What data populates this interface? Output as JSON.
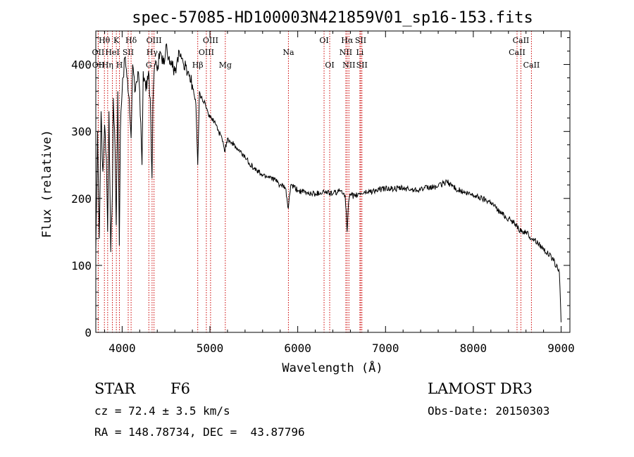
{
  "chart_data": {
    "type": "line",
    "title": "spec-57085-HD100003N421859V01_sp16-153.fits",
    "xlabel": "Wavelength (Å)",
    "ylabel": "Flux (relative)",
    "xlim": [
      3700,
      9100
    ],
    "ylim": [
      0,
      450
    ],
    "xticks": [
      4000,
      5000,
      6000,
      7000,
      8000,
      9000
    ],
    "yticks": [
      0,
      100,
      200,
      300,
      400
    ],
    "grid": false,
    "series": [
      {
        "name": "spectrum",
        "x": [
          3700,
          3720,
          3740,
          3760,
          3780,
          3800,
          3820,
          3835,
          3850,
          3870,
          3889,
          3900,
          3920,
          3933,
          3950,
          3968,
          3980,
          4000,
          4030,
          4060,
          4080,
          4102,
          4120,
          4150,
          4180,
          4200,
          4226,
          4240,
          4270,
          4300,
          4320,
          4340,
          4350,
          4370,
          4400,
          4430,
          4450,
          4480,
          4500,
          4530,
          4560,
          4600,
          4650,
          4700,
          4750,
          4800,
          4840,
          4861,
          4880,
          4900,
          4950,
          5000,
          5050,
          5100,
          5150,
          5167,
          5200,
          5270,
          5300,
          5400,
          5500,
          5600,
          5700,
          5800,
          5860,
          5893,
          5920,
          6000,
          6100,
          6200,
          6300,
          6400,
          6500,
          6540,
          6563,
          6580,
          6600,
          6650,
          6700,
          6800,
          6900,
          7000,
          7100,
          7200,
          7300,
          7400,
          7500,
          7600,
          7700,
          7800,
          7900,
          8000,
          8100,
          8200,
          8300,
          8400,
          8498,
          8542,
          8600,
          8662,
          8700,
          8800,
          8900,
          8980,
          9000
        ],
        "values": [
          120,
          300,
          140,
          330,
          240,
          310,
          260,
          150,
          330,
          120,
          210,
          350,
          270,
          160,
          360,
          130,
          300,
          360,
          410,
          380,
          350,
          290,
          400,
          360,
          390,
          360,
          250,
          390,
          360,
          390,
          350,
          230,
          340,
          400,
          390,
          420,
          410,
          400,
          430,
          410,
          400,
          390,
          420,
          400,
          390,
          370,
          340,
          250,
          360,
          350,
          340,
          320,
          315,
          300,
          285,
          270,
          290,
          280,
          275,
          262,
          245,
          235,
          232,
          220,
          215,
          185,
          220,
          212,
          208,
          207,
          210,
          207,
          212,
          205,
          150,
          195,
          205,
          203,
          207,
          210,
          212,
          215,
          214,
          215,
          213,
          214,
          216,
          218,
          225,
          215,
          208,
          205,
          200,
          195,
          180,
          170,
          160,
          150,
          150,
          140,
          138,
          125,
          110,
          90,
          15
        ]
      }
    ],
    "lines": [
      {
        "label": "Hθ",
        "wl": 3798,
        "row": 1
      },
      {
        "label": "OII",
        "wl": 3727,
        "row": 2
      },
      {
        "label": "OII",
        "wl": 3729,
        "row": 3
      },
      {
        "label": "Hη",
        "wl": 3835,
        "row": 3
      },
      {
        "label": "HeI",
        "wl": 3889,
        "row": 2
      },
      {
        "label": "K",
        "wl": 3934,
        "row": 1
      },
      {
        "label": "H",
        "wl": 3969,
        "row": 3
      },
      {
        "label": "SII",
        "wl": 4069,
        "row": 2
      },
      {
        "label": "Hδ",
        "wl": 4102,
        "row": 1
      },
      {
        "label": "G",
        "wl": 4304,
        "row": 3
      },
      {
        "label": "Hγ",
        "wl": 4341,
        "row": 2
      },
      {
        "label": "OIII",
        "wl": 4363,
        "row": 1
      },
      {
        "label": "Hβ",
        "wl": 4861,
        "row": 3
      },
      {
        "label": "OIII",
        "wl": 4959,
        "row": 2
      },
      {
        "label": "OIII",
        "wl": 5007,
        "row": 1
      },
      {
        "label": "Mg",
        "wl": 5175,
        "row": 3
      },
      {
        "label": "Na",
        "wl": 5894,
        "row": 2
      },
      {
        "label": "OI",
        "wl": 6300,
        "row": 1
      },
      {
        "label": "OI",
        "wl": 6364,
        "row": 3
      },
      {
        "label": "NII",
        "wl": 6548,
        "row": 2
      },
      {
        "label": "Hα",
        "wl": 6563,
        "row": 1
      },
      {
        "label": "NII",
        "wl": 6583,
        "row": 3
      },
      {
        "label": "Li",
        "wl": 6708,
        "row": 2
      },
      {
        "label": "SII",
        "wl": 6717,
        "row": 1
      },
      {
        "label": "SII",
        "wl": 6731,
        "row": 3
      },
      {
        "label": "CaII",
        "wl": 8498,
        "row": 2
      },
      {
        "label": "CaII",
        "wl": 8542,
        "row": 1
      },
      {
        "label": "CaII",
        "wl": 8662,
        "row": 3
      }
    ]
  },
  "info": {
    "object_type": "STAR",
    "spectral_class": "F6",
    "survey": "LAMOST DR3",
    "cz": "cz = 72.4 ± 3.5 km/s",
    "obs_date": "Obs-Date: 20150303",
    "coords": "RA = 148.78734, DEC =  43.87796"
  },
  "colors": {
    "line_marker": "#cc0000",
    "spectrum": "#000000",
    "axes": "#000000"
  }
}
